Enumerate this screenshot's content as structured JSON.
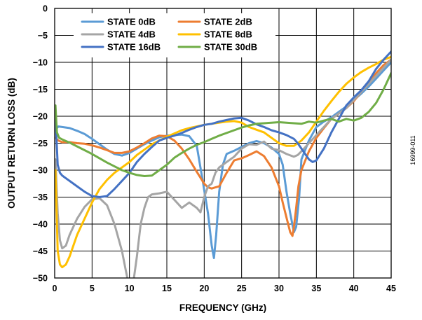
{
  "figure_id": "16999-011",
  "chart_data": {
    "type": "line",
    "title": "",
    "xlabel": "FREQUENCY (GHz)",
    "ylabel": "OUTPUT RETURN LOSS (dB)",
    "xlim": [
      0,
      45
    ],
    "ylim": [
      -50,
      0
    ],
    "xticks": [
      0,
      5,
      10,
      15,
      20,
      25,
      30,
      35,
      40,
      45
    ],
    "yticks": [
      0,
      -5,
      -10,
      -15,
      -20,
      -25,
      -30,
      -35,
      -40,
      -45,
      -50
    ],
    "grid": true,
    "legend_position": "top-center",
    "series": [
      {
        "name": "STATE 0dB",
        "color": "#5B9BD5",
        "x": [
          0.1,
          0.5,
          1,
          2,
          3,
          4,
          5,
          6,
          7,
          8,
          9,
          10,
          11,
          12,
          13,
          14,
          15,
          16,
          17,
          18,
          19,
          19.8,
          20.5,
          21,
          21.3,
          21.6,
          22,
          22.5,
          23,
          24,
          25,
          26,
          27,
          28,
          29,
          30,
          30.5,
          31,
          31.5,
          32,
          32.3,
          32.7,
          33,
          34,
          35,
          36,
          37,
          38,
          39,
          40,
          41,
          42,
          43,
          44,
          45
        ],
        "y": [
          -22.5,
          -21.9,
          -22,
          -22.2,
          -22.7,
          -23.3,
          -24.2,
          -25.2,
          -26.2,
          -27,
          -27.3,
          -26.8,
          -26,
          -25.2,
          -24.5,
          -23.9,
          -23.6,
          -23.5,
          -23.4,
          -23.7,
          -25.5,
          -32,
          -38,
          -44,
          -46.3,
          -42,
          -34,
          -29,
          -27,
          -26.4,
          -25.7,
          -25,
          -24.6,
          -25,
          -25.8,
          -27,
          -29,
          -34,
          -38,
          -41.5,
          -40.5,
          -35,
          -28,
          -24.5,
          -22,
          -21,
          -20.2,
          -19.2,
          -18.2,
          -17,
          -15.8,
          -14.5,
          -13,
          -11.5,
          -10
        ]
      },
      {
        "name": "STATE 2dB",
        "color": "#ED7D31",
        "x": [
          0.1,
          0.5,
          1,
          2,
          3,
          4,
          5,
          6,
          7,
          8,
          9,
          10,
          11,
          12,
          13,
          14,
          15,
          16,
          17,
          18,
          19,
          20,
          20.5,
          21,
          21.5,
          22,
          23,
          24,
          25,
          26,
          27,
          28,
          29,
          30,
          30.5,
          31,
          31.5,
          31.8,
          32,
          32.3,
          32.6,
          33,
          34,
          35,
          36,
          37,
          38,
          39,
          40,
          41,
          42,
          43,
          44,
          45
        ],
        "y": [
          -24,
          -24.5,
          -24.8,
          -24.8,
          -25,
          -25.1,
          -25.4,
          -25.8,
          -26.3,
          -26.8,
          -26.8,
          -26.5,
          -25.8,
          -25,
          -24.1,
          -23.6,
          -23.7,
          -24.5,
          -26,
          -28,
          -30.3,
          -32.5,
          -33.2,
          -33.4,
          -33.2,
          -33,
          -30.5,
          -28.2,
          -27.8,
          -27.2,
          -26.5,
          -27.4,
          -29.5,
          -33,
          -36,
          -38.8,
          -41.5,
          -42.2,
          -40.5,
          -37,
          -33,
          -30,
          -26.5,
          -24,
          -22.2,
          -20.5,
          -19.5,
          -18.5,
          -17.2,
          -15.5,
          -13.8,
          -12,
          -10.5,
          -9.5
        ]
      },
      {
        "name": "STATE 4dB",
        "color": "#A5A5A5",
        "x": [
          0.1,
          0.4,
          0.7,
          1,
          1.5,
          2,
          3,
          4,
          5,
          6,
          7,
          8,
          9,
          9.5,
          9.8,
          10,
          10.2,
          10.5,
          11,
          11.5,
          12,
          12.5,
          13,
          14,
          15,
          16,
          17,
          18,
          19,
          19.5,
          20,
          20.5,
          21,
          21.5,
          22,
          23,
          24,
          25,
          26,
          27,
          28,
          29,
          30,
          31,
          32,
          32.5,
          33,
          34,
          35,
          36,
          37,
          38,
          39,
          40,
          41,
          42,
          43,
          44,
          45
        ],
        "y": [
          -28,
          -38,
          -43,
          -44.5,
          -44,
          -42,
          -39,
          -36.8,
          -35.4,
          -35.2,
          -36.5,
          -40,
          -45,
          -48.5,
          -50.5,
          -53,
          -53,
          -51,
          -46,
          -40,
          -37,
          -35,
          -34.5,
          -34.3,
          -34,
          -35.5,
          -37,
          -36,
          -37,
          -37.8,
          -35,
          -33,
          -32.5,
          -30.5,
          -29.5,
          -28.5,
          -27.5,
          -26,
          -25.2,
          -25.3,
          -24.7,
          -26,
          -26.3,
          -27,
          -27.5,
          -27.2,
          -26.5,
          -25,
          -23.5,
          -22,
          -20.5,
          -19.5,
          -18.5,
          -17,
          -15.5,
          -14,
          -12.5,
          -11,
          -9.5
        ]
      },
      {
        "name": "STATE 8dB",
        "color": "#FFC000",
        "x": [
          0.1,
          0.4,
          0.7,
          1,
          1.5,
          2,
          3,
          4,
          5,
          6,
          7,
          8,
          9,
          10,
          11,
          12,
          13,
          14,
          15,
          16,
          17,
          18,
          19,
          20,
          21,
          22,
          23,
          24,
          25,
          26,
          27,
          28,
          29,
          30,
          31,
          32,
          33,
          34,
          35,
          36,
          37,
          38,
          39,
          40,
          41,
          42,
          43,
          44,
          45
        ],
        "y": [
          -30,
          -45,
          -47.5,
          -48,
          -47.5,
          -46,
          -42,
          -39,
          -36,
          -33.5,
          -31.8,
          -30.5,
          -29.5,
          -28.5,
          -27.2,
          -26.2,
          -25.2,
          -24.5,
          -23.8,
          -23.2,
          -22.6,
          -22.2,
          -21.9,
          -21.6,
          -21.4,
          -21.2,
          -21,
          -20.9,
          -21.2,
          -22,
          -22.5,
          -23,
          -24,
          -25,
          -25.5,
          -25.5,
          -24.5,
          -23,
          -21,
          -19,
          -17.2,
          -15.5,
          -14,
          -12.8,
          -11.8,
          -11,
          -10.3,
          -9.5,
          -9
        ]
      },
      {
        "name": "STATE 16dB",
        "color": "#4472C4",
        "x": [
          0.1,
          0.4,
          0.7,
          1,
          1.5,
          2,
          3,
          4,
          5,
          6,
          7,
          8,
          9,
          10,
          11,
          12,
          13,
          14,
          15,
          16,
          17,
          18,
          19,
          20,
          21,
          22,
          23,
          24,
          25,
          26,
          27,
          28,
          29,
          30,
          31,
          32,
          32.5,
          33,
          33.5,
          34,
          34.5,
          35,
          36,
          37,
          38,
          39,
          40,
          41,
          42,
          43,
          44,
          45
        ],
        "y": [
          -20,
          -29,
          -30.5,
          -31,
          -31.5,
          -32,
          -33,
          -34,
          -34.8,
          -35,
          -34.8,
          -33.5,
          -32,
          -30.5,
          -28.5,
          -27,
          -25.7,
          -24.5,
          -24,
          -23.6,
          -23.1,
          -22.5,
          -22,
          -21.6,
          -21.4,
          -21,
          -20.7,
          -20.4,
          -20.3,
          -20.8,
          -21.5,
          -22,
          -22.6,
          -23,
          -23.5,
          -24.2,
          -25,
          -26,
          -27,
          -28,
          -28.5,
          -28.2,
          -26,
          -23,
          -20.5,
          -18,
          -16.5,
          -15.2,
          -13.5,
          -11.2,
          -9.5,
          -8
        ]
      },
      {
        "name": "STATE 30dB",
        "color": "#70AD47",
        "x": [
          0.1,
          0.3,
          0.6,
          1,
          2,
          3,
          4,
          5,
          6,
          7,
          8,
          9,
          10,
          11,
          12,
          13,
          14,
          15,
          16,
          17,
          18,
          19,
          20,
          21,
          22,
          23,
          24,
          25,
          26,
          27,
          28,
          29,
          30,
          31,
          32,
          33,
          34,
          35,
          36,
          37,
          38,
          39,
          40,
          41,
          42,
          43,
          44,
          45
        ],
        "y": [
          -18,
          -23,
          -24,
          -24.3,
          -24.9,
          -25.6,
          -26.3,
          -27,
          -27.8,
          -28.6,
          -29.3,
          -30,
          -30.5,
          -30.9,
          -31.1,
          -31,
          -30,
          -29,
          -27.7,
          -26.8,
          -26,
          -25.3,
          -24.8,
          -24.2,
          -23.6,
          -23.1,
          -22.6,
          -22.1,
          -21.7,
          -21.4,
          -21.3,
          -21.2,
          -21.1,
          -21.2,
          -21.3,
          -21.4,
          -21,
          -21.2,
          -20.8,
          -20.5,
          -21,
          -20.5,
          -20.8,
          -20.3,
          -19.2,
          -17.5,
          -15,
          -12
        ]
      }
    ]
  }
}
